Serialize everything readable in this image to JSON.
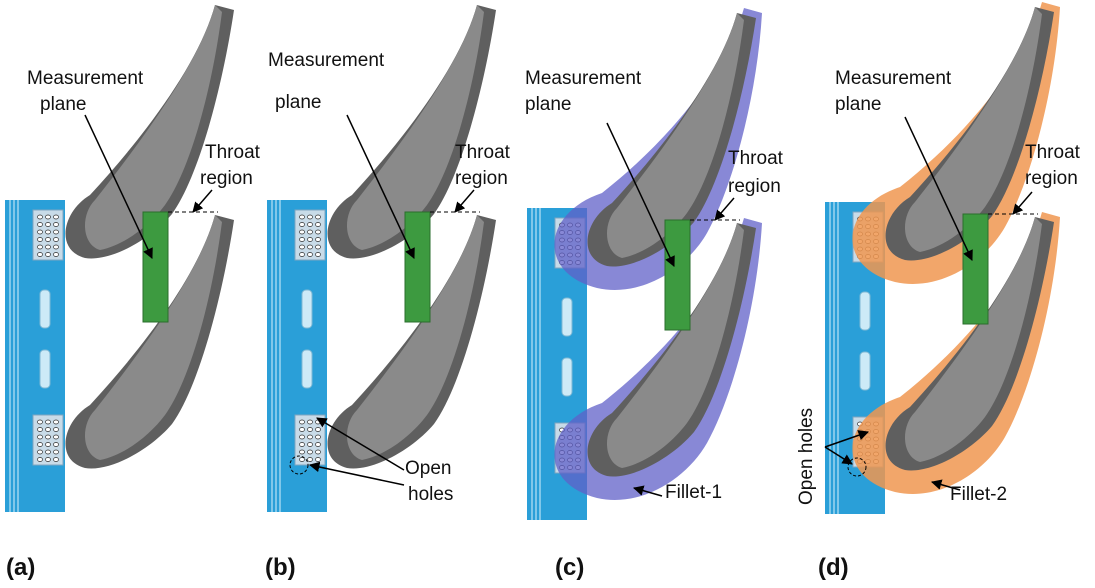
{
  "panels": [
    {
      "caption": "(a)",
      "measurement_plane": [
        "Measurement",
        "plane"
      ],
      "throat_region": [
        "Throat",
        "region"
      ]
    },
    {
      "caption": "(b)",
      "measurement_plane": [
        "Measurement",
        "plane"
      ],
      "throat_region": [
        "Throat",
        "region"
      ],
      "open_holes": [
        "Open",
        "holes"
      ]
    },
    {
      "caption": "(c)",
      "measurement_plane": [
        "Measurement",
        "plane"
      ],
      "throat_region": [
        "Throat",
        "region"
      ],
      "fillet": "Fillet-1"
    },
    {
      "caption": "(d)",
      "measurement_plane": [
        "Measurement",
        "plane"
      ],
      "throat_region": [
        "Throat",
        "region"
      ],
      "open_holes": [
        "Open holes"
      ],
      "fillet": "Fillet-2"
    }
  ]
}
